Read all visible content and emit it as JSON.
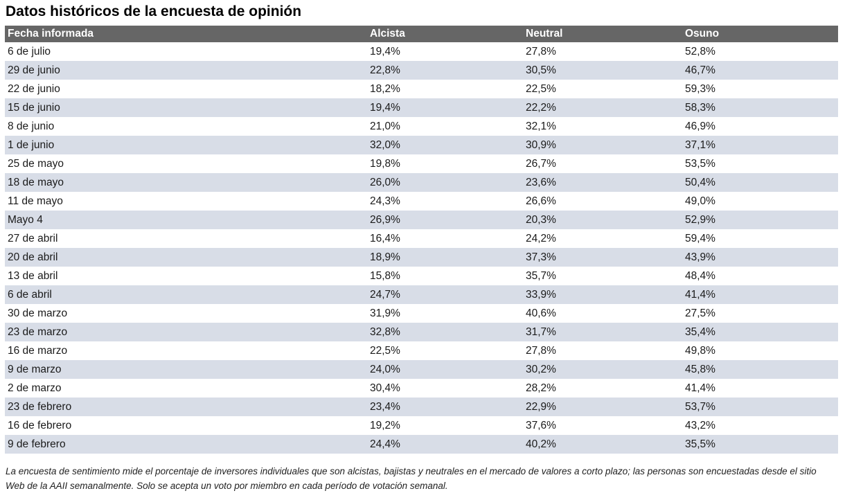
{
  "page": {
    "title": "Datos históricos de la encuesta de opinión",
    "footnote": "La encuesta de sentimiento mide el porcentaje de inversores individuales que son alcistas, bajistas y neutrales en el mercado de valores a corto plazo; las personas son encuestadas desde el sitio Web de la AAII semanalmente. Solo se acepta un voto por miembro en cada período de votación semanal."
  },
  "table": {
    "headers": [
      "Fecha informada",
      "Alcista",
      "Neutral",
      "Osuno"
    ],
    "rows": [
      [
        "6 de julio",
        "19,4%",
        "27,8%",
        "52,8%"
      ],
      [
        "29 de junio",
        "22,8%",
        "30,5%",
        "46,7%"
      ],
      [
        "22 de junio",
        "18,2%",
        "22,5%",
        "59,3%"
      ],
      [
        "15 de junio",
        "19,4%",
        "22,2%",
        "58,3%"
      ],
      [
        "8 de junio",
        "21,0%",
        "32,1%",
        "46,9%"
      ],
      [
        "1 de junio",
        "32,0%",
        "30,9%",
        "37,1%"
      ],
      [
        "25 de mayo",
        "19,8%",
        "26,7%",
        "53,5%"
      ],
      [
        "18 de mayo",
        "26,0%",
        "23,6%",
        "50,4%"
      ],
      [
        "11 de mayo",
        "24,3%",
        "26,6%",
        "49,0%"
      ],
      [
        "Mayo 4",
        "26,9%",
        "20,3%",
        "52,9%"
      ],
      [
        "27 de abril",
        "16,4%",
        "24,2%",
        "59,4%"
      ],
      [
        "20 de abril",
        "18,9%",
        "37,3%",
        "43,9%"
      ],
      [
        "13 de abril",
        "15,8%",
        "35,7%",
        "48,4%"
      ],
      [
        "6 de abril",
        "24,7%",
        "33,9%",
        "41,4%"
      ],
      [
        "30 de marzo",
        "31,9%",
        "40,6%",
        "27,5%"
      ],
      [
        "23 de marzo",
        "32,8%",
        "31,7%",
        "35,4%"
      ],
      [
        "16 de marzo",
        "22,5%",
        "27,8%",
        "49,8%"
      ],
      [
        "9 de marzo",
        "24,0%",
        "30,2%",
        "45,8%"
      ],
      [
        "2 de marzo",
        "30,4%",
        "28,2%",
        "41,4%"
      ],
      [
        "23 de febrero",
        "23,4%",
        "22,9%",
        "53,7%"
      ],
      [
        "16 de febrero",
        "19,2%",
        "37,6%",
        "43,2%"
      ],
      [
        "9 de febrero",
        "24,4%",
        "40,2%",
        "35,5%"
      ]
    ]
  },
  "colors": {
    "header_bg": "#666666",
    "header_text": "#ffffff",
    "row_stripe": "#d8dde7",
    "row_plain": "#ffffff",
    "body_text": "#1a1a1a"
  },
  "chart_data": {
    "type": "table",
    "title": "Datos históricos de la encuesta de opinión",
    "columns": [
      "Fecha informada",
      "Alcista",
      "Neutral",
      "Osuno"
    ],
    "categories": [
      "6 de julio",
      "29 de junio",
      "22 de junio",
      "15 de junio",
      "8 de junio",
      "1 de junio",
      "25 de mayo",
      "18 de mayo",
      "11 de mayo",
      "Mayo 4",
      "27 de abril",
      "20 de abril",
      "13 de abril",
      "6 de abril",
      "30 de marzo",
      "23 de marzo",
      "16 de marzo",
      "9 de marzo",
      "2 de marzo",
      "23 de febrero",
      "16 de febrero",
      "9 de febrero"
    ],
    "series": [
      {
        "name": "Alcista",
        "unit": "%",
        "values": [
          19.4,
          22.8,
          18.2,
          19.4,
          21.0,
          32.0,
          19.8,
          26.0,
          24.3,
          26.9,
          16.4,
          18.9,
          15.8,
          24.7,
          31.9,
          32.8,
          22.5,
          24.0,
          30.4,
          23.4,
          19.2,
          24.4
        ]
      },
      {
        "name": "Neutral",
        "unit": "%",
        "values": [
          27.8,
          30.5,
          22.5,
          22.2,
          32.1,
          30.9,
          26.7,
          23.6,
          26.6,
          20.3,
          24.2,
          37.3,
          35.7,
          33.9,
          40.6,
          31.7,
          27.8,
          30.2,
          28.2,
          22.9,
          37.6,
          40.2
        ]
      },
      {
        "name": "Osuno",
        "unit": "%",
        "values": [
          52.8,
          46.7,
          59.3,
          58.3,
          46.9,
          37.1,
          53.5,
          50.4,
          49.0,
          52.9,
          59.4,
          43.9,
          48.4,
          41.4,
          27.5,
          35.4,
          49.8,
          45.8,
          41.4,
          53.7,
          43.2,
          35.5
        ]
      }
    ],
    "decimal_separator": ",",
    "footnote": "La encuesta de sentimiento mide el porcentaje de inversores individuales que son alcistas, bajistas y neutrales en el mercado de valores a corto plazo; las personas son encuestadas desde el sitio Web de la AAII semanalmente. Solo se acepta un voto por miembro en cada período de votación semanal."
  }
}
